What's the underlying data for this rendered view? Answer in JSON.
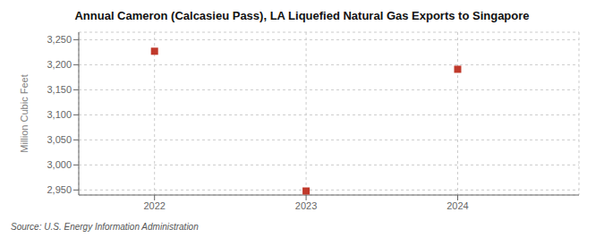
{
  "chart_data": {
    "type": "scatter",
    "title": "Annual Cameron (Calcasieu Pass), LA Liquefied Natural Gas Exports to Singapore",
    "y_label": "Million Cubic Feet",
    "annotations": [
      "Source: U.S. Energy Information Administration"
    ],
    "x": [
      2022,
      2023,
      2024
    ],
    "values": [
      3227,
      2948,
      3191
    ],
    "xlim": [
      2021.5,
      2024.8
    ],
    "ylim": [
      2940,
      3265
    ],
    "xticks": [
      2022,
      2023,
      2024
    ],
    "yticks": [
      {
        "value": 2950,
        "label": "2,950"
      },
      {
        "value": 3000,
        "label": "3,000"
      },
      {
        "value": 3050,
        "label": "3,050"
      },
      {
        "value": 3100,
        "label": "3,100"
      },
      {
        "value": 3150,
        "label": "3,150"
      },
      {
        "value": 3200,
        "label": "3,200"
      },
      {
        "value": 3250,
        "label": "3,250"
      }
    ],
    "color": "#c0392b",
    "marker": "square",
    "grid": true
  }
}
